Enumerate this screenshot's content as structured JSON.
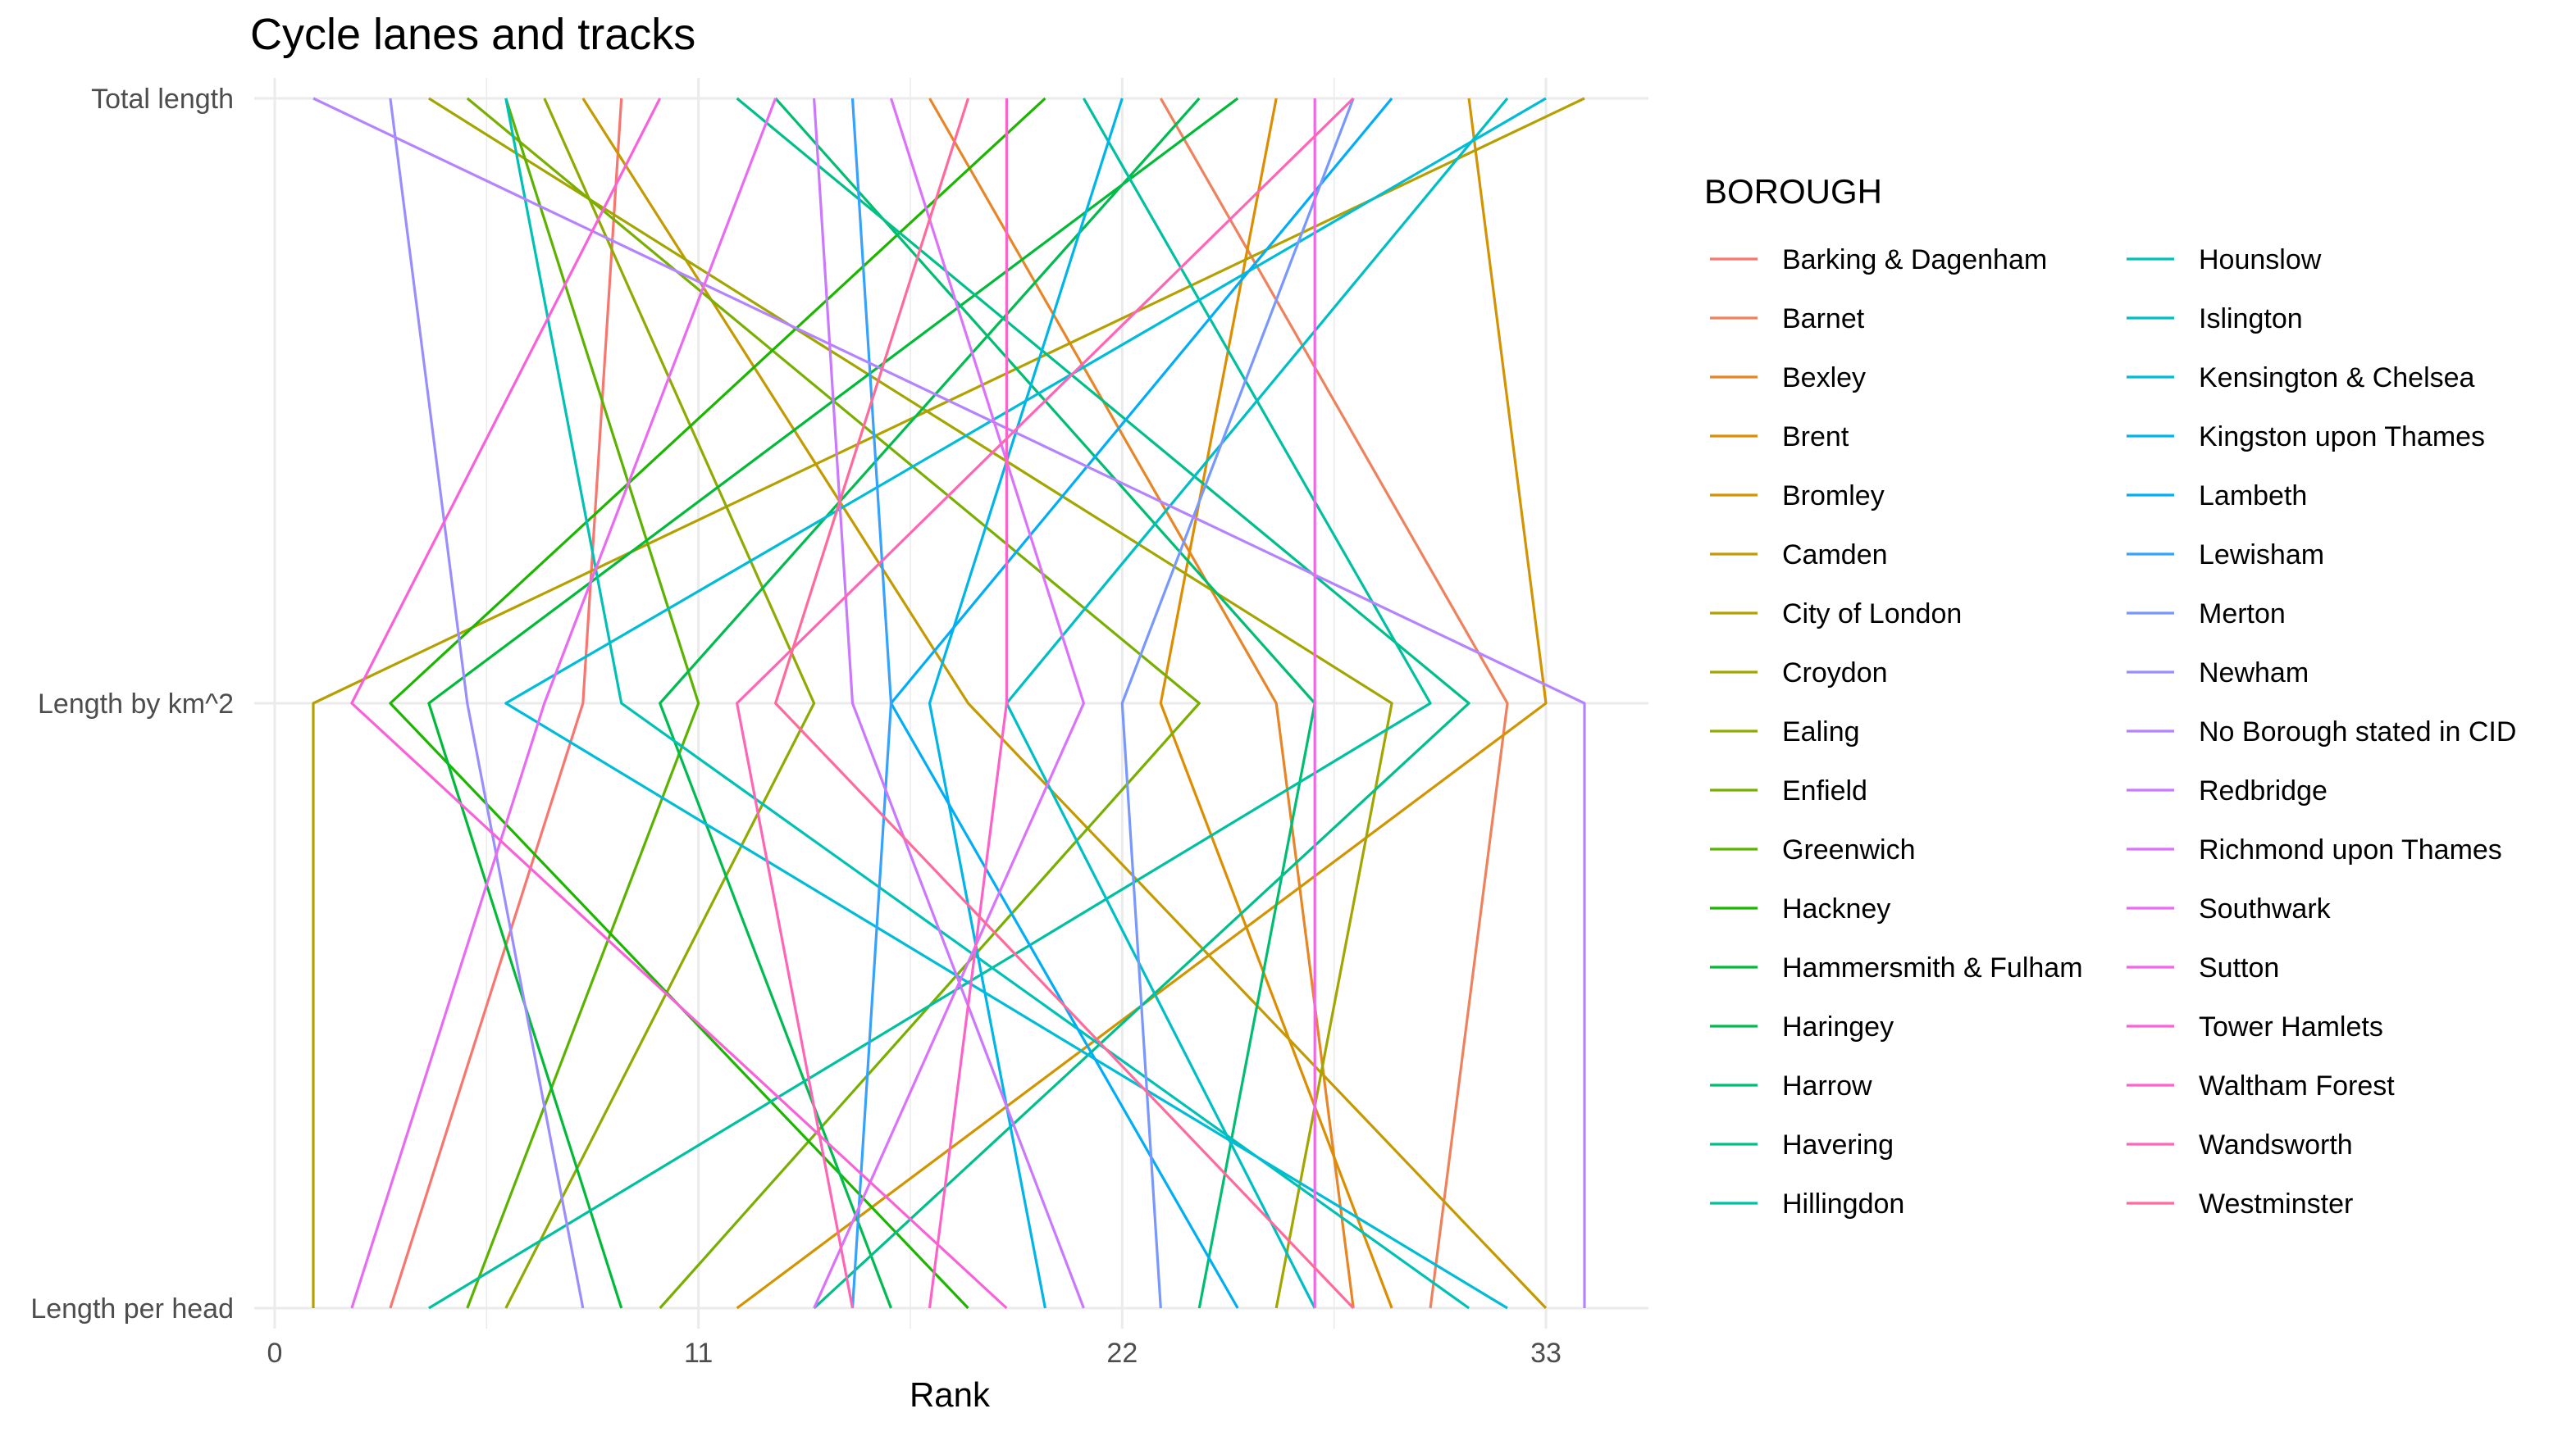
{
  "chart_data": {
    "type": "line",
    "title": "Cycle lanes and tracks",
    "xlabel": "Rank",
    "ylabel": "",
    "xlim": [
      0,
      34.5
    ],
    "x_ticks": [
      0,
      11,
      22,
      33
    ],
    "y_categories": [
      "Length per head",
      "Length by km^2",
      "Total length"
    ],
    "grid": true,
    "legend": {
      "title": "BOROUGH",
      "placement": "right",
      "columns": 2
    },
    "series": [
      {
        "name": "Barking & Dagenham",
        "color": "#F8766D",
        "ranks": [
          3,
          8,
          9
        ]
      },
      {
        "name": "Barnet",
        "color": "#F0815D",
        "ranks": [
          30,
          32,
          23
        ]
      },
      {
        "name": "Bexley",
        "color": "#E88526",
        "ranks": [
          28,
          26,
          17
        ]
      },
      {
        "name": "Brent",
        "color": "#DD8D00",
        "ranks": [
          29,
          23,
          26
        ]
      },
      {
        "name": "Bromley",
        "color": "#D29400",
        "ranks": [
          12,
          33,
          31
        ]
      },
      {
        "name": "Camden",
        "color": "#C49A00",
        "ranks": [
          33,
          18,
          8
        ]
      },
      {
        "name": "City of London",
        "color": "#B4A000",
        "ranks": [
          1,
          1,
          34
        ]
      },
      {
        "name": "Croydon",
        "color": "#A3A500",
        "ranks": [
          26,
          29,
          4
        ]
      },
      {
        "name": "Ealing",
        "color": "#8FAA00",
        "ranks": [
          6,
          14,
          7
        ]
      },
      {
        "name": "Enfield",
        "color": "#78AF00",
        "ranks": [
          10,
          24,
          5
        ]
      },
      {
        "name": "Greenwich",
        "color": "#5BB300",
        "ranks": [
          5,
          11,
          6
        ]
      },
      {
        "name": "Hackney",
        "color": "#1CB600",
        "ranks": [
          18,
          3,
          20
        ]
      },
      {
        "name": "Hammersmith & Fulham",
        "color": "#00BA38",
        "ranks": [
          9,
          4,
          25
        ]
      },
      {
        "name": "Haringey",
        "color": "#00BB4F",
        "ranks": [
          16,
          10,
          24
        ]
      },
      {
        "name": "Harrow",
        "color": "#00BE71",
        "ranks": [
          24,
          27,
          13
        ]
      },
      {
        "name": "Havering",
        "color": "#00BF8A",
        "ranks": [
          14,
          31,
          12
        ]
      },
      {
        "name": "Hillingdon",
        "color": "#00C0A0",
        "ranks": [
          4,
          30,
          21
        ]
      },
      {
        "name": "Hounslow",
        "color": "#00C1B4",
        "ranks": [
          31,
          9,
          6
        ]
      },
      {
        "name": "Islington",
        "color": "#00BFC4",
        "ranks": [
          27,
          19,
          32
        ]
      },
      {
        "name": "Kensington & Chelsea",
        "color": "#00BCD7",
        "ranks": [
          32,
          6,
          33
        ]
      },
      {
        "name": "Kingston upon Thames",
        "color": "#00B5E8",
        "ranks": [
          20,
          17,
          22
        ]
      },
      {
        "name": "Lambeth",
        "color": "#00ADF6",
        "ranks": [
          25,
          16,
          29
        ]
      },
      {
        "name": "Lewisham",
        "color": "#35A2FF",
        "ranks": [
          15,
          16,
          15
        ]
      },
      {
        "name": "Merton",
        "color": "#7898FF",
        "ranks": [
          23,
          22,
          28
        ]
      },
      {
        "name": "Newham",
        "color": "#9A8EFF",
        "ranks": [
          8,
          5,
          3
        ]
      },
      {
        "name": "No Borough stated in CID",
        "color": "#B483FF",
        "ranks": [
          34,
          34,
          1
        ]
      },
      {
        "name": "Redbridge",
        "color": "#CA78FF",
        "ranks": [
          21,
          15,
          14
        ]
      },
      {
        "name": "Richmond upon Thames",
        "color": "#DB72FB",
        "ranks": [
          14,
          21,
          16
        ]
      },
      {
        "name": "Southwark",
        "color": "#E86BF1",
        "ranks": [
          2,
          7,
          13
        ]
      },
      {
        "name": "Sutton",
        "color": "#F265E8",
        "ranks": [
          27,
          27,
          27
        ]
      },
      {
        "name": "Tower Hamlets",
        "color": "#F961D9",
        "ranks": [
          19,
          2,
          10
        ]
      },
      {
        "name": "Waltham Forest",
        "color": "#FE62C9",
        "ranks": [
          17,
          19,
          19
        ]
      },
      {
        "name": "Wandsworth",
        "color": "#FF65B6",
        "ranks": [
          15,
          12,
          28
        ]
      },
      {
        "name": "Westminster",
        "color": "#FF6A9A",
        "ranks": [
          28,
          13,
          18
        ]
      }
    ]
  }
}
